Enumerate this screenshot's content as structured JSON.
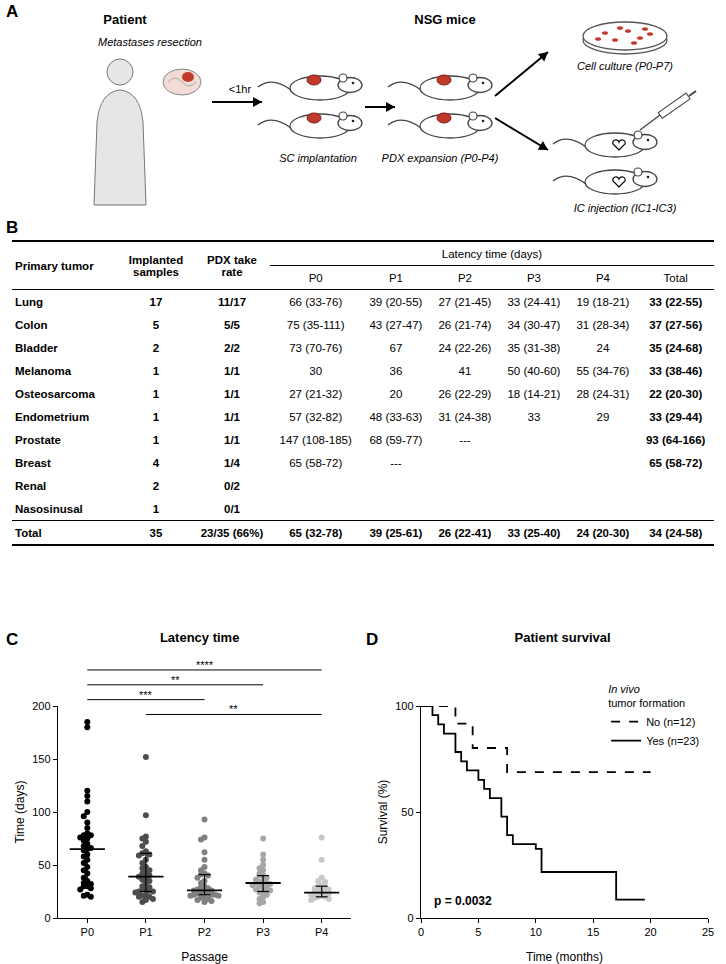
{
  "panel_labels": {
    "a": "A",
    "b": "B",
    "c": "C",
    "d": "D"
  },
  "diagram": {
    "headers": {
      "patient": "Patient",
      "mice": "NSG mice"
    },
    "labels": {
      "resection": "Metastases resection",
      "time": "<1hr",
      "implantation": "SC implantation",
      "expansion": "PDX expansion (P0-P4)",
      "culture": "Cell culture (P0-P7)",
      "injection": "IC injection (IC1-IC3)"
    }
  },
  "table": {
    "header": {
      "columns": [
        "Primary tumor",
        "Implanted samples",
        "PDX take rate"
      ],
      "group": "Latency time (days)",
      "subcolumns": [
        "P0",
        "P1",
        "P2",
        "P3",
        "P4",
        "Total"
      ]
    },
    "rows": [
      [
        "Lung",
        "17",
        "11/17",
        "66 (33-76)",
        "39 (20-55)",
        "27 (21-45)",
        "33 (24-41)",
        "19 (18-21)",
        "33 (22-55)"
      ],
      [
        "Colon",
        "5",
        "5/5",
        "75 (35-111)",
        "43 (27-47)",
        "26 (21-74)",
        "34 (30-47)",
        "31 (28-34)",
        "37 (27-56)"
      ],
      [
        "Bladder",
        "2",
        "2/2",
        "73 (70-76)",
        "67",
        "24 (22-26)",
        "35 (31-38)",
        "24",
        "35 (24-68)"
      ],
      [
        "Melanoma",
        "1",
        "1/1",
        "30",
        "36",
        "41",
        "50 (40-60)",
        "55 (34-76)",
        "33 (38-46)"
      ],
      [
        "Osteosarcoma",
        "1",
        "1/1",
        "27 (21-32)",
        "20",
        "26 (22-29)",
        "18 (14-21)",
        "28 (24-31)",
        "22 (20-30)"
      ],
      [
        "Endometrium",
        "1",
        "1/1",
        "57 (32-82)",
        "48 (33-63)",
        "31 (24-38)",
        "33",
        "29",
        "33 (29-44)"
      ],
      [
        "Prostate",
        "1",
        "1/1",
        "147 (108-185)",
        "68 (59-77)",
        "---",
        null,
        null,
        "93 (64-166)"
      ],
      [
        "Breast",
        "4",
        "1/4",
        "65 (58-72)",
        "---",
        null,
        null,
        null,
        "65 (58-72)"
      ],
      [
        "Renal",
        "2",
        "0/2",
        null,
        null,
        null,
        null,
        null,
        null
      ],
      [
        "Nasosinusal",
        "1",
        "0/1",
        null,
        null,
        null,
        null,
        null,
        null
      ]
    ],
    "total": [
      "Total",
      "35",
      "23/35 (66%)",
      "65 (32-78)",
      "39 (25-61)",
      "26 (22-41)",
      "33 (25-40)",
      "24 (20-30)",
      "34 (24-58)"
    ]
  },
  "chart_data": [
    {
      "type": "scatter",
      "title": "Latency time",
      "x_label": "Passage",
      "y_label": "Time (days)",
      "categories": [
        "P0",
        "P1",
        "P2",
        "P3",
        "P4"
      ],
      "marker": "circle",
      "groups": [
        {
          "color": "#000000",
          "median": 65,
          "error_low": 32,
          "error_high": 78,
          "values": [
            185,
            180,
            120,
            115,
            110,
            100,
            96,
            90,
            85,
            80,
            78,
            78,
            76,
            75,
            73,
            70,
            68,
            66,
            65,
            64,
            60,
            58,
            55,
            52,
            48,
            45,
            42,
            38,
            35,
            33,
            32,
            30,
            30,
            28,
            27,
            22,
            21,
            20
          ]
        },
        {
          "color": "#4d4d4d",
          "median": 39,
          "error_low": 25,
          "error_high": 61,
          "values": [
            152,
            97,
            77,
            75,
            72,
            68,
            63,
            61,
            60,
            59,
            55,
            52,
            48,
            47,
            45,
            43,
            42,
            40,
            39,
            38,
            36,
            35,
            33,
            30,
            29,
            27,
            27,
            26,
            25,
            25,
            24,
            22,
            21,
            20,
            20,
            18,
            17,
            15
          ]
        },
        {
          "color": "#808080",
          "median": 26,
          "error_low": 22,
          "error_high": 41,
          "values": [
            93,
            76,
            74,
            62,
            55,
            48,
            45,
            42,
            41,
            40,
            38,
            35,
            33,
            30,
            29,
            28,
            27,
            26,
            26,
            25,
            24,
            24,
            23,
            22,
            22,
            22,
            21,
            21,
            20,
            19,
            18,
            17,
            16,
            15
          ]
        },
        {
          "color": "#a6a6a6",
          "median": 33,
          "error_low": 25,
          "error_high": 40,
          "values": [
            75,
            60,
            55,
            50,
            47,
            45,
            42,
            40,
            40,
            38,
            36,
            35,
            34,
            33,
            33,
            32,
            31,
            30,
            30,
            28,
            27,
            26,
            25,
            24,
            22,
            20,
            18,
            15,
            14
          ]
        },
        {
          "color": "#c8c8c8",
          "median": 24,
          "error_low": 20,
          "error_high": 30,
          "values": [
            76,
            55,
            38,
            35,
            34,
            31,
            30,
            29,
            28,
            27,
            26,
            25,
            24,
            24,
            23,
            22,
            21,
            20,
            20,
            19,
            18,
            17
          ]
        }
      ],
      "ylim": [
        0,
        200
      ],
      "yticks": [
        0,
        50,
        100,
        150,
        200
      ],
      "grid": false,
      "annotations": [
        {
          "from": "P0",
          "to": "P4",
          "text": "****"
        },
        {
          "from": "P0",
          "to": "P3",
          "text": "**"
        },
        {
          "from": "P0",
          "to": "P2",
          "text": "***"
        },
        {
          "from": "P1",
          "to": "P4",
          "text": "**"
        }
      ]
    },
    {
      "type": "line",
      "title": "Patient survival",
      "x_label": "Time (months)",
      "y_label": "Survival (%)",
      "legend": "top right",
      "legend_title": [
        "In vivo",
        "tumor formation"
      ],
      "series": [
        {
          "name": "No (n=12)",
          "color": "#000000",
          "line_style": "dash",
          "x": [
            0,
            3,
            4.5,
            7.5,
            20
          ],
          "values": [
            100,
            91.7,
            80.2,
            68.8,
            68.8
          ]
        },
        {
          "name": "Yes (n=23)",
          "color": "#000000",
          "line_style": "solid",
          "x": [
            0,
            1,
            1.5,
            2,
            3,
            3.5,
            4,
            5,
            5.5,
            6,
            7,
            7.5,
            8,
            10,
            10.5,
            17,
            19.5
          ],
          "values": [
            100,
            95.7,
            91.3,
            87,
            78.3,
            73.9,
            69.6,
            65.2,
            60.9,
            56.5,
            47.8,
            39.1,
            34.8,
            32.6,
            21.7,
            8.7,
            8.7
          ]
        }
      ],
      "xlim": [
        0,
        25
      ],
      "xticks": [
        0,
        5,
        10,
        15,
        20,
        25
      ],
      "ylim": [
        0,
        100
      ],
      "yticks": [
        0,
        50,
        100
      ],
      "grid": false,
      "annotations": [
        {
          "text": "p = 0.0032"
        }
      ]
    }
  ]
}
